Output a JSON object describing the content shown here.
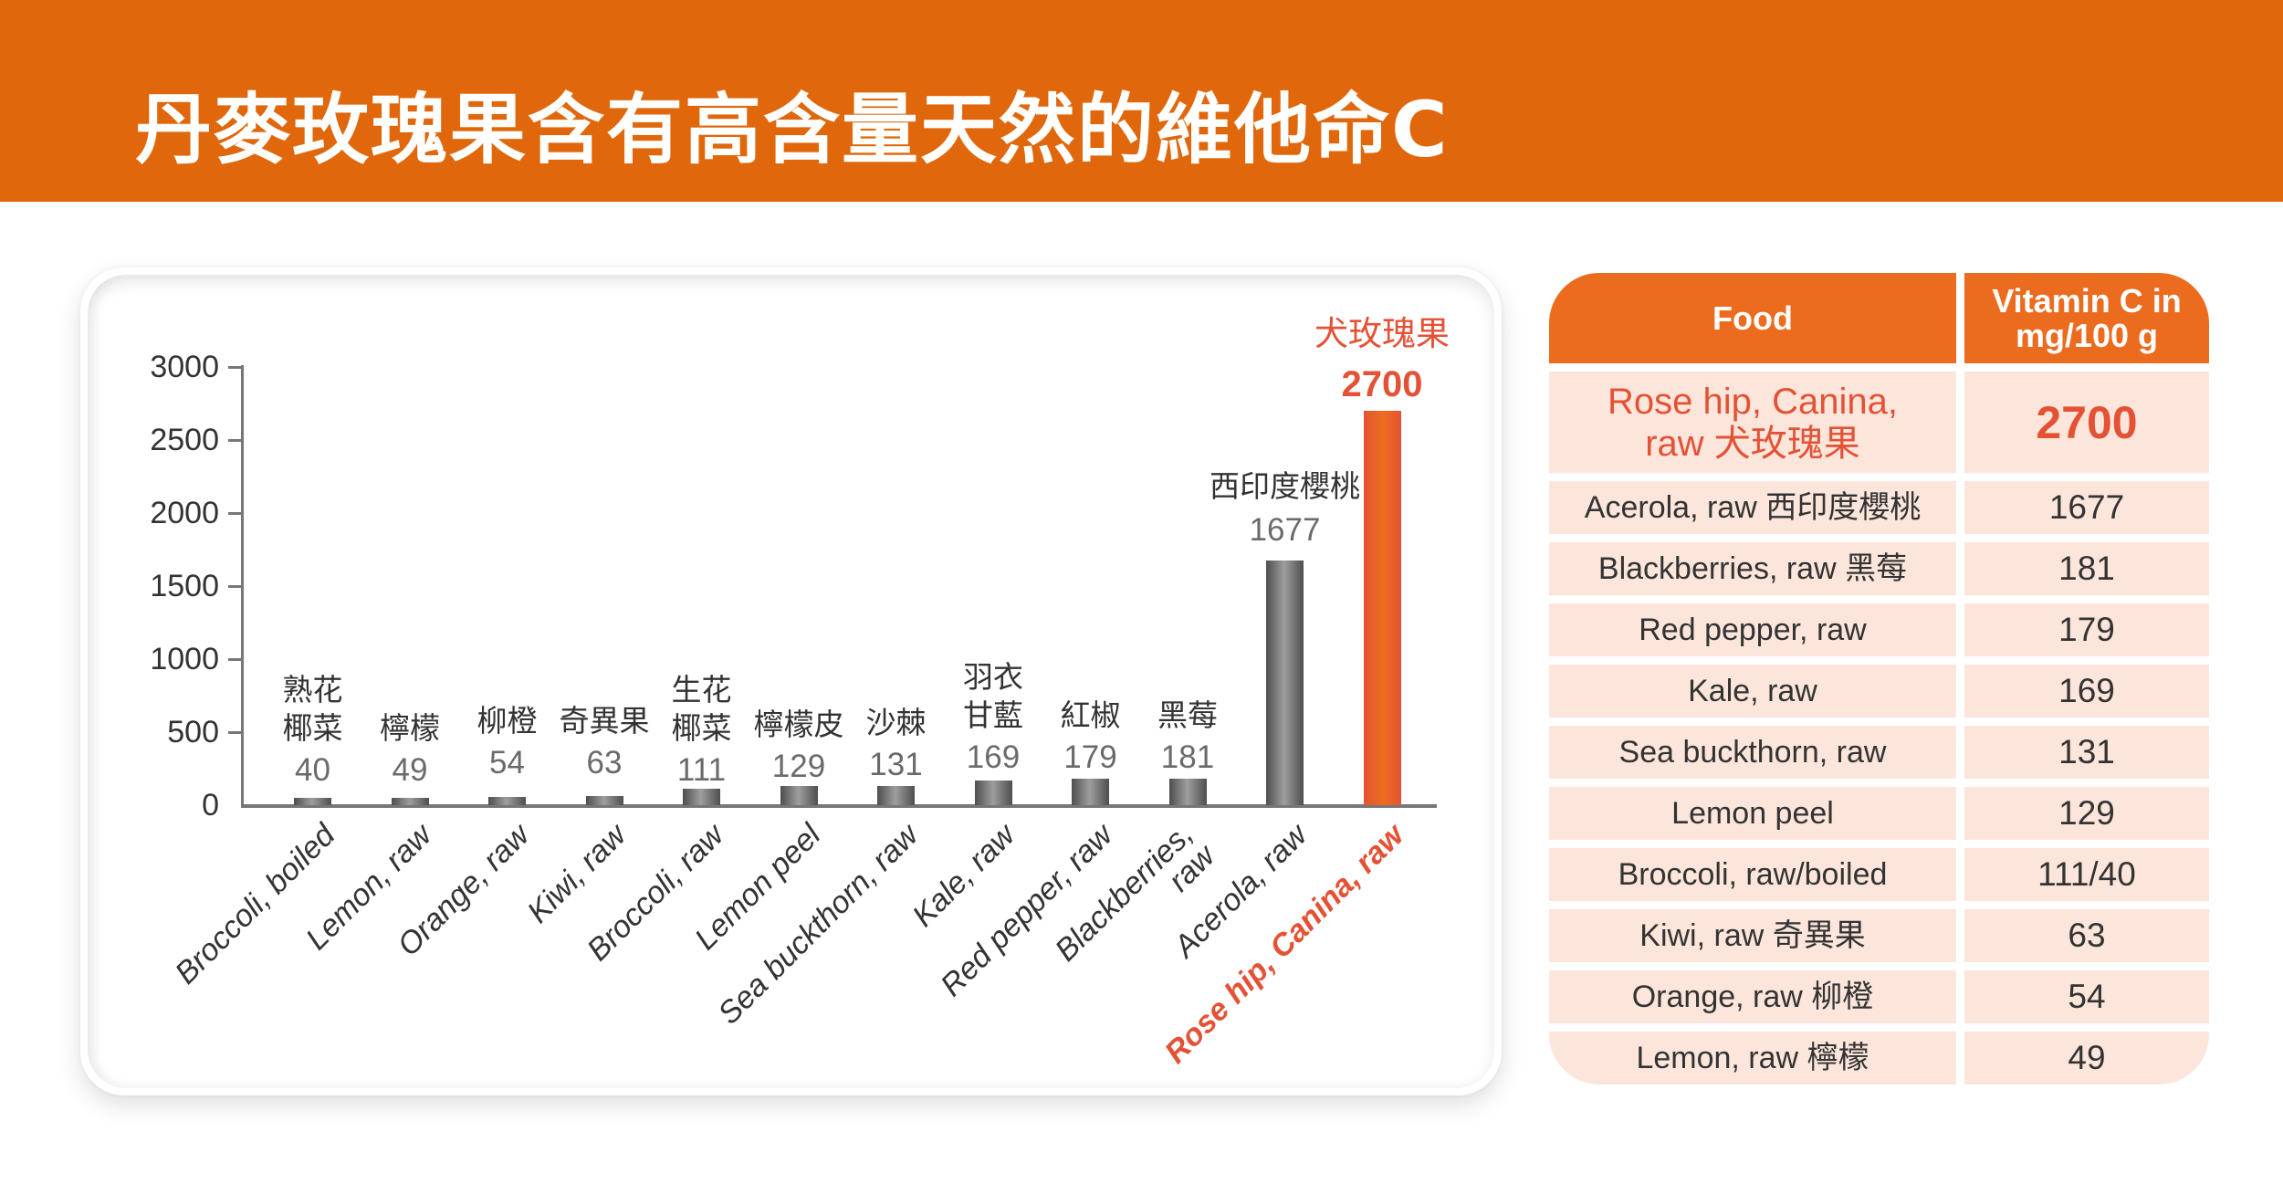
{
  "header": {
    "title": "丹麥玫瑰果含有高含量天然的維他命C",
    "background_color": "#e0670b"
  },
  "chart_data": {
    "type": "bar",
    "title": "",
    "xlabel": "",
    "ylabel": "",
    "ylim": [
      0,
      3000
    ],
    "yticks": [
      0,
      500,
      1000,
      1500,
      2000,
      2500,
      3000
    ],
    "grid": false,
    "legend": null,
    "categories": [
      "Broccoli, boiled",
      "Lemon, raw",
      "Orange, raw",
      "Kiwi, raw",
      "Broccoli, raw",
      "Lemon peel",
      "Sea buckthorn, raw",
      "Kale, raw",
      "Red pepper, raw",
      "Blackberries, raw",
      "Acerola, raw",
      "Rose hip, Canina, raw"
    ],
    "categories_zh": [
      "熟花椰菜",
      "檸檬",
      "柳橙",
      "奇異果",
      "生花椰菜",
      "檸檬皮",
      "沙棘",
      "羽衣甘藍",
      "紅椒",
      "黑莓",
      "西印度櫻桃",
      "犬玫瑰果"
    ],
    "values": [
      40,
      49,
      54,
      63,
      111,
      129,
      131,
      169,
      179,
      181,
      1677,
      2700
    ],
    "highlight_index": 11,
    "colors": {
      "bar": "#6b6b6b",
      "highlight": "#e45236"
    }
  },
  "chart": {
    "yticks": [
      "0",
      "500",
      "1000",
      "1500",
      "2000",
      "2500",
      "3000"
    ],
    "bars": [
      {
        "label": "Broccoli, boiled",
        "cn_line1": "熟花",
        "cn_line2": "椰菜",
        "value": "40"
      },
      {
        "label": "Lemon, raw",
        "cn_line1": "",
        "cn_line2": "檸檬",
        "value": "49"
      },
      {
        "label": "Orange, raw",
        "cn_line1": "",
        "cn_line2": "柳橙",
        "value": "54"
      },
      {
        "label": "Kiwi, raw",
        "cn_line1": "",
        "cn_line2": "奇異果",
        "value": "63"
      },
      {
        "label": "Broccoli, raw",
        "cn_line1": "生花",
        "cn_line2": "椰菜",
        "value": "111"
      },
      {
        "label": "Lemon peel",
        "cn_line1": "",
        "cn_line2": "檸檬皮",
        "value": "129"
      },
      {
        "label": "Sea buckthorn, raw",
        "cn_line1": "",
        "cn_line2": "沙棘",
        "value": "131"
      },
      {
        "label": "Kale, raw",
        "cn_line1": "羽衣",
        "cn_line2": "甘藍",
        "value": "169"
      },
      {
        "label": "Red pepper, raw",
        "cn_line1": "",
        "cn_line2": "紅椒",
        "value": "179"
      },
      {
        "label_line1": "Blackberries,",
        "label_line2": "raw",
        "label": "Blackberries,",
        "cn_line1": "",
        "cn_line2": "黑莓",
        "value": "181"
      },
      {
        "label": "Acerola, raw",
        "cn_line1": "",
        "cn_line2": "西印度櫻桃",
        "value": "1677"
      },
      {
        "label": "Rose hip, Canina, raw",
        "cn_line1": "",
        "cn_line2": "犬玫瑰果",
        "value": "2700"
      }
    ]
  },
  "table": {
    "header_food": "Food",
    "header_vitamin": "Vitamin C in mg/100 g",
    "rows": [
      {
        "food": "Rose hip, Canina, raw 犬玫瑰果",
        "value": "2700"
      },
      {
        "food": "Acerola, raw 西印度櫻桃",
        "value": "1677"
      },
      {
        "food": "Blackberries, raw 黑莓",
        "value": "181"
      },
      {
        "food": "Red pepper, raw",
        "value": "179"
      },
      {
        "food": "Kale, raw",
        "value": "169"
      },
      {
        "food": "Sea buckthorn, raw",
        "value": "131"
      },
      {
        "food": "Lemon peel",
        "value": "129"
      },
      {
        "food": "Broccoli, raw/boiled",
        "value": "111/40"
      },
      {
        "food": "Kiwi, raw 奇異果",
        "value": "63"
      },
      {
        "food": "Orange, raw 柳橙",
        "value": "54"
      },
      {
        "food": "Lemon, raw 檸檬",
        "value": "49"
      }
    ],
    "header_color": "#ec6c1f",
    "row_color": "#fce6dc",
    "highlight_color": "#e45236"
  }
}
